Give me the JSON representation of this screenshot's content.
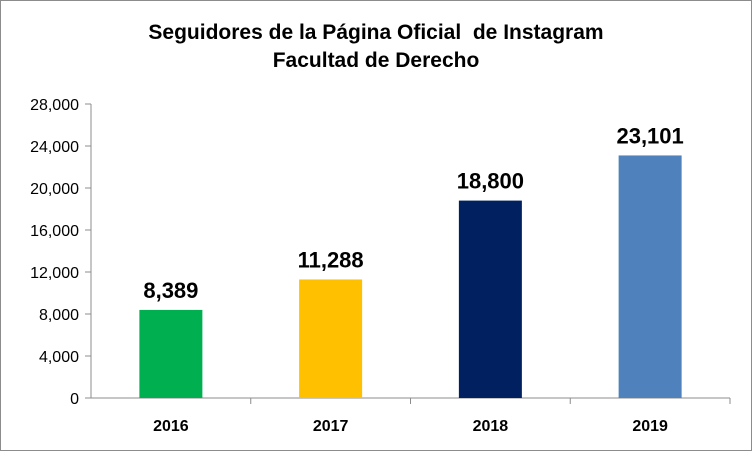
{
  "chart_data": {
    "type": "bar",
    "title": "Seguidores de la Página Oficial  de Instagram",
    "subtitle": "Facultad de Derecho",
    "categories": [
      "2016",
      "2017",
      "2018",
      "2019"
    ],
    "values": [
      8389,
      11288,
      18800,
      23101
    ],
    "data_labels": [
      "8,389",
      "11,288",
      "18,800",
      "23,101"
    ],
    "bar_colors": [
      "#00b050",
      "#ffc000",
      "#002060",
      "#4f81bd"
    ],
    "yticks": [
      "0",
      "4,000",
      "8,000",
      "12,000",
      "16,000",
      "20,000",
      "24,000",
      "28,000"
    ],
    "ylim": [
      0,
      28000
    ],
    "xlabel": "",
    "ylabel": "",
    "grid": false,
    "legend": "none"
  }
}
